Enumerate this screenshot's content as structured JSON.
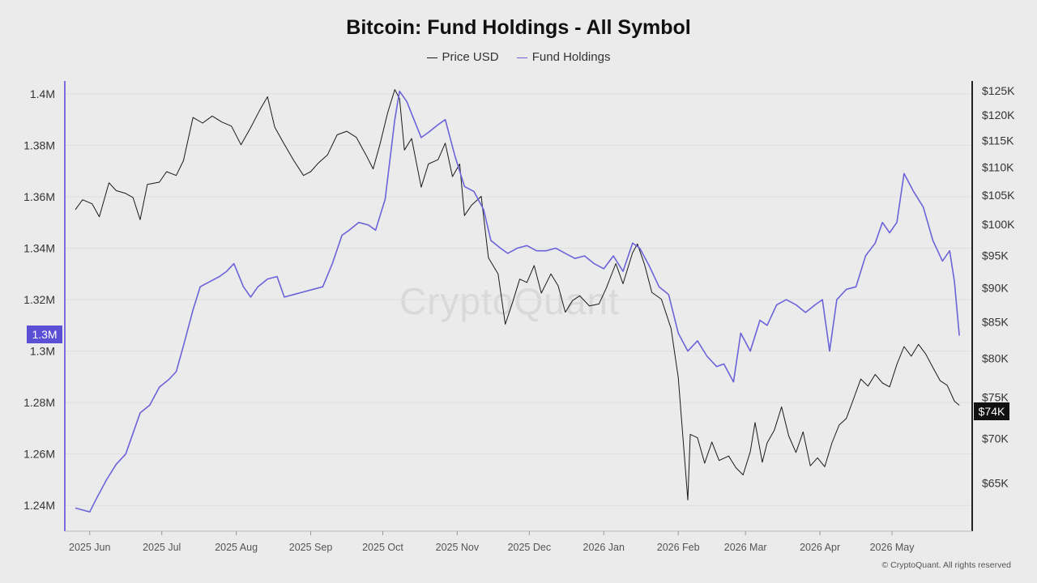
{
  "chart_data": {
    "type": "line",
    "title": "Bitcoin: Fund Holdings - All Symbol",
    "legend_position": "top-center",
    "grid": true,
    "x_ticks": [
      "2025 Jun",
      "2025 Jul",
      "2025 Aug",
      "2025 Sep",
      "2025 Oct",
      "2025 Nov",
      "2025 Dec",
      "2026 Jan",
      "2026 Feb",
      "2026 Mar",
      "2026 Apr",
      "2026 May"
    ],
    "x_range": [
      "2025-05-25",
      "2026-05-31"
    ],
    "y_left": {
      "ticks": [
        "1.24M",
        "1.26M",
        "1.28M",
        "1.3M",
        "1.32M",
        "1.34M",
        "1.36M",
        "1.38M",
        "1.4M"
      ],
      "values": [
        1240000,
        1260000,
        1280000,
        1300000,
        1320000,
        1340000,
        1360000,
        1380000,
        1400000
      ],
      "range": [
        1230000,
        1405000
      ]
    },
    "y_right": {
      "scale": "log",
      "ticks": [
        "$65K",
        "$70K",
        "$75K",
        "$80K",
        "$85K",
        "$90K",
        "$95K",
        "$100K",
        "$105K",
        "$110K",
        "$115K",
        "$120K",
        "$125K"
      ],
      "values": [
        65000,
        70000,
        75000,
        80000,
        85000,
        90000,
        95000,
        100000,
        105000,
        110000,
        115000,
        120000,
        125000
      ],
      "range": [
        60000,
        127000
      ]
    },
    "series": [
      {
        "name": "Price USD",
        "axis": "right",
        "color": "#1a1a1a",
        "points": [
          [
            "2025-05-26",
            102500
          ],
          [
            "2025-05-29",
            104200
          ],
          [
            "2025-06-02",
            103500
          ],
          [
            "2025-06-05",
            101300
          ],
          [
            "2025-06-09",
            107200
          ],
          [
            "2025-06-12",
            105800
          ],
          [
            "2025-06-16",
            105300
          ],
          [
            "2025-06-19",
            104600
          ],
          [
            "2025-06-22",
            100800
          ],
          [
            "2025-06-25",
            106900
          ],
          [
            "2025-06-30",
            107300
          ],
          [
            "2025-07-03",
            109200
          ],
          [
            "2025-07-07",
            108500
          ],
          [
            "2025-07-10",
            111200
          ],
          [
            "2025-07-14",
            119500
          ],
          [
            "2025-07-18",
            118400
          ],
          [
            "2025-07-22",
            119800
          ],
          [
            "2025-07-26",
            118600
          ],
          [
            "2025-07-30",
            117800
          ],
          [
            "2025-08-03",
            114200
          ],
          [
            "2025-08-07",
            117500
          ],
          [
            "2025-08-11",
            121200
          ],
          [
            "2025-08-14",
            123700
          ],
          [
            "2025-08-17",
            117600
          ],
          [
            "2025-08-21",
            114300
          ],
          [
            "2025-08-25",
            111200
          ],
          [
            "2025-08-29",
            108500
          ],
          [
            "2025-09-01",
            109200
          ],
          [
            "2025-09-04",
            110700
          ],
          [
            "2025-09-08",
            112300
          ],
          [
            "2025-09-12",
            116100
          ],
          [
            "2025-09-16",
            116800
          ],
          [
            "2025-09-20",
            115600
          ],
          [
            "2025-09-24",
            112300
          ],
          [
            "2025-09-27",
            109700
          ],
          [
            "2025-09-30",
            114600
          ],
          [
            "2025-10-03",
            120400
          ],
          [
            "2025-10-06",
            125200
          ],
          [
            "2025-10-08",
            123300
          ],
          [
            "2025-10-10",
            113200
          ],
          [
            "2025-10-13",
            115400
          ],
          [
            "2025-10-17",
            106400
          ],
          [
            "2025-10-20",
            110600
          ],
          [
            "2025-10-24",
            111400
          ],
          [
            "2025-10-27",
            114500
          ],
          [
            "2025-10-30",
            108300
          ],
          [
            "2025-11-02",
            110600
          ],
          [
            "2025-11-04",
            101500
          ],
          [
            "2025-11-07",
            103300
          ],
          [
            "2025-11-11",
            104800
          ],
          [
            "2025-11-14",
            94600
          ],
          [
            "2025-11-18",
            92100
          ],
          [
            "2025-11-21",
            84700
          ],
          [
            "2025-11-24",
            87800
          ],
          [
            "2025-11-27",
            91300
          ],
          [
            "2025-11-30",
            90800
          ],
          [
            "2025-12-03",
            93400
          ],
          [
            "2025-12-06",
            89200
          ],
          [
            "2025-12-10",
            92100
          ],
          [
            "2025-12-13",
            90300
          ],
          [
            "2025-12-16",
            86400
          ],
          [
            "2025-12-19",
            88100
          ],
          [
            "2025-12-22",
            88800
          ],
          [
            "2025-12-26",
            87300
          ],
          [
            "2025-12-30",
            87600
          ],
          [
            "2026-01-02",
            89900
          ],
          [
            "2026-01-06",
            93700
          ],
          [
            "2026-01-09",
            90600
          ],
          [
            "2026-01-13",
            95400
          ],
          [
            "2026-01-15",
            96800
          ],
          [
            "2026-01-18",
            93500
          ],
          [
            "2026-01-21",
            89300
          ],
          [
            "2026-01-25",
            88300
          ],
          [
            "2026-01-29",
            84100
          ],
          [
            "2026-02-01",
            77500
          ],
          [
            "2026-02-05",
            63200
          ],
          [
            "2026-02-06",
            70500
          ],
          [
            "2026-02-09",
            70100
          ],
          [
            "2026-02-12",
            67200
          ],
          [
            "2026-02-15",
            69600
          ],
          [
            "2026-02-18",
            67500
          ],
          [
            "2026-02-22",
            68000
          ],
          [
            "2026-02-25",
            66700
          ],
          [
            "2026-02-28",
            65900
          ],
          [
            "2026-03-03",
            68500
          ],
          [
            "2026-03-05",
            71900
          ],
          [
            "2026-03-08",
            67300
          ],
          [
            "2026-03-10",
            69500
          ],
          [
            "2026-03-13",
            71000
          ],
          [
            "2026-03-16",
            73800
          ],
          [
            "2026-03-19",
            70300
          ],
          [
            "2026-03-22",
            68400
          ],
          [
            "2026-03-25",
            70800
          ],
          [
            "2026-03-28",
            66900
          ],
          [
            "2026-03-31",
            67800
          ],
          [
            "2026-04-03",
            66800
          ],
          [
            "2026-04-06",
            69500
          ],
          [
            "2026-04-09",
            71600
          ],
          [
            "2026-04-12",
            72400
          ],
          [
            "2026-04-15",
            74800
          ],
          [
            "2026-04-18",
            77300
          ],
          [
            "2026-04-21",
            76400
          ],
          [
            "2026-04-24",
            77900
          ],
          [
            "2026-04-27",
            76800
          ],
          [
            "2026-04-30",
            76300
          ],
          [
            "2026-05-03",
            79200
          ],
          [
            "2026-05-06",
            81600
          ],
          [
            "2026-05-09",
            80300
          ],
          [
            "2026-05-12",
            81900
          ],
          [
            "2026-05-15",
            80600
          ],
          [
            "2026-05-18",
            78800
          ],
          [
            "2026-05-21",
            77100
          ],
          [
            "2026-05-24",
            76500
          ],
          [
            "2026-05-27",
            74500
          ],
          [
            "2026-05-29",
            74000
          ]
        ]
      },
      {
        "name": "Fund Holdings",
        "axis": "left",
        "color": "#6c63d9",
        "points": [
          [
            "2025-05-26",
            1239000
          ],
          [
            "2025-05-28",
            1238500
          ],
          [
            "2025-06-01",
            1237500
          ],
          [
            "2025-06-04",
            1243000
          ],
          [
            "2025-06-08",
            1250000
          ],
          [
            "2025-06-12",
            1256000
          ],
          [
            "2025-06-16",
            1260000
          ],
          [
            "2025-06-19",
            1268000
          ],
          [
            "2025-06-22",
            1276000
          ],
          [
            "2025-06-26",
            1279000
          ],
          [
            "2025-06-30",
            1286000
          ],
          [
            "2025-07-04",
            1289000
          ],
          [
            "2025-07-07",
            1292000
          ],
          [
            "2025-07-10",
            1302000
          ],
          [
            "2025-07-14",
            1316000
          ],
          [
            "2025-07-17",
            1325000
          ],
          [
            "2025-07-21",
            1327000
          ],
          [
            "2025-07-25",
            1329000
          ],
          [
            "2025-07-28",
            1331000
          ],
          [
            "2025-07-31",
            1334000
          ],
          [
            "2025-08-04",
            1325000
          ],
          [
            "2025-08-07",
            1321000
          ],
          [
            "2025-08-10",
            1325000
          ],
          [
            "2025-08-14",
            1328000
          ],
          [
            "2025-08-18",
            1329000
          ],
          [
            "2025-08-21",
            1321000
          ],
          [
            "2025-08-25",
            1322000
          ],
          [
            "2025-08-29",
            1323000
          ],
          [
            "2025-09-02",
            1324000
          ],
          [
            "2025-09-06",
            1325000
          ],
          [
            "2025-09-10",
            1334000
          ],
          [
            "2025-09-14",
            1345000
          ],
          [
            "2025-09-17",
            1347000
          ],
          [
            "2025-09-21",
            1350000
          ],
          [
            "2025-09-25",
            1349000
          ],
          [
            "2025-09-28",
            1347000
          ],
          [
            "2025-10-02",
            1359000
          ],
          [
            "2025-10-06",
            1390000
          ],
          [
            "2025-10-08",
            1401000
          ],
          [
            "2025-10-11",
            1397000
          ],
          [
            "2025-10-14",
            1390000
          ],
          [
            "2025-10-17",
            1383000
          ],
          [
            "2025-10-20",
            1385000
          ],
          [
            "2025-10-24",
            1388000
          ],
          [
            "2025-10-27",
            1390000
          ],
          [
            "2025-10-31",
            1376000
          ],
          [
            "2025-11-04",
            1364000
          ],
          [
            "2025-11-08",
            1362000
          ],
          [
            "2025-11-12",
            1355000
          ],
          [
            "2025-11-15",
            1343000
          ],
          [
            "2025-11-19",
            1340000
          ],
          [
            "2025-11-22",
            1338000
          ],
          [
            "2025-11-26",
            1340000
          ],
          [
            "2025-11-30",
            1341000
          ],
          [
            "2025-12-04",
            1339000
          ],
          [
            "2025-12-08",
            1339000
          ],
          [
            "2025-12-12",
            1340000
          ],
          [
            "2025-12-16",
            1338000
          ],
          [
            "2025-12-20",
            1336000
          ],
          [
            "2025-12-24",
            1337000
          ],
          [
            "2025-12-28",
            1334000
          ],
          [
            "2026-01-01",
            1332000
          ],
          [
            "2026-01-05",
            1337000
          ],
          [
            "2026-01-09",
            1331000
          ],
          [
            "2026-01-13",
            1342000
          ],
          [
            "2026-01-16",
            1340000
          ],
          [
            "2026-01-20",
            1333000
          ],
          [
            "2026-01-24",
            1325000
          ],
          [
            "2026-01-28",
            1322000
          ],
          [
            "2026-02-01",
            1307000
          ],
          [
            "2026-02-05",
            1300000
          ],
          [
            "2026-02-09",
            1304000
          ],
          [
            "2026-02-13",
            1298000
          ],
          [
            "2026-02-17",
            1294000
          ],
          [
            "2026-02-20",
            1295000
          ],
          [
            "2026-02-24",
            1288000
          ],
          [
            "2026-02-27",
            1307000
          ],
          [
            "2026-03-03",
            1300000
          ],
          [
            "2026-03-07",
            1312000
          ],
          [
            "2026-03-10",
            1310000
          ],
          [
            "2026-03-14",
            1318000
          ],
          [
            "2026-03-18",
            1320000
          ],
          [
            "2026-03-22",
            1318000
          ],
          [
            "2026-03-26",
            1315000
          ],
          [
            "2026-03-30",
            1318000
          ],
          [
            "2026-04-02",
            1320000
          ],
          [
            "2026-04-05",
            1300000
          ],
          [
            "2026-04-08",
            1320000
          ],
          [
            "2026-04-12",
            1324000
          ],
          [
            "2026-04-16",
            1325000
          ],
          [
            "2026-04-20",
            1337000
          ],
          [
            "2026-04-24",
            1342000
          ],
          [
            "2026-04-27",
            1350000
          ],
          [
            "2026-04-30",
            1346000
          ],
          [
            "2026-05-03",
            1350000
          ],
          [
            "2026-05-06",
            1369000
          ],
          [
            "2026-05-10",
            1362000
          ],
          [
            "2026-05-14",
            1356000
          ],
          [
            "2026-05-18",
            1343000
          ],
          [
            "2026-05-22",
            1335000
          ],
          [
            "2026-05-25",
            1339000
          ],
          [
            "2026-05-27",
            1327000
          ],
          [
            "2026-05-29",
            1306000
          ]
        ]
      }
    ],
    "current_left_label": "1.3M",
    "current_right_label": "$74K"
  },
  "watermark": "CryptoQuant",
  "copyright": "© CryptoQuant. All rights reserved"
}
